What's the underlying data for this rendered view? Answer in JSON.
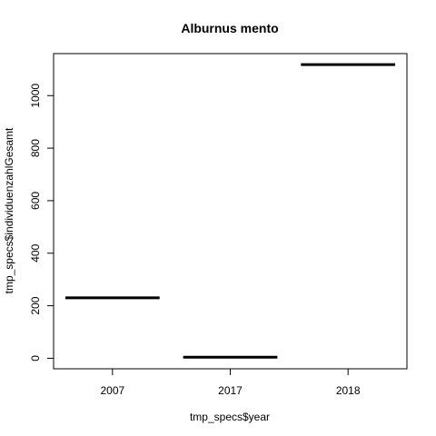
{
  "chart_data": {
    "type": "bar",
    "title": "Alburnus mento",
    "xlabel": "tmp_specs$year",
    "ylabel": "tmp_specs$individuenzahlGesamt",
    "categories": [
      "2007",
      "2017",
      "2018"
    ],
    "values": [
      230,
      4,
      1118
    ],
    "ylim": [
      -40,
      1160
    ],
    "yticks": [
      0,
      200,
      400,
      600,
      800,
      1000
    ],
    "grid": false,
    "legend": "none"
  }
}
